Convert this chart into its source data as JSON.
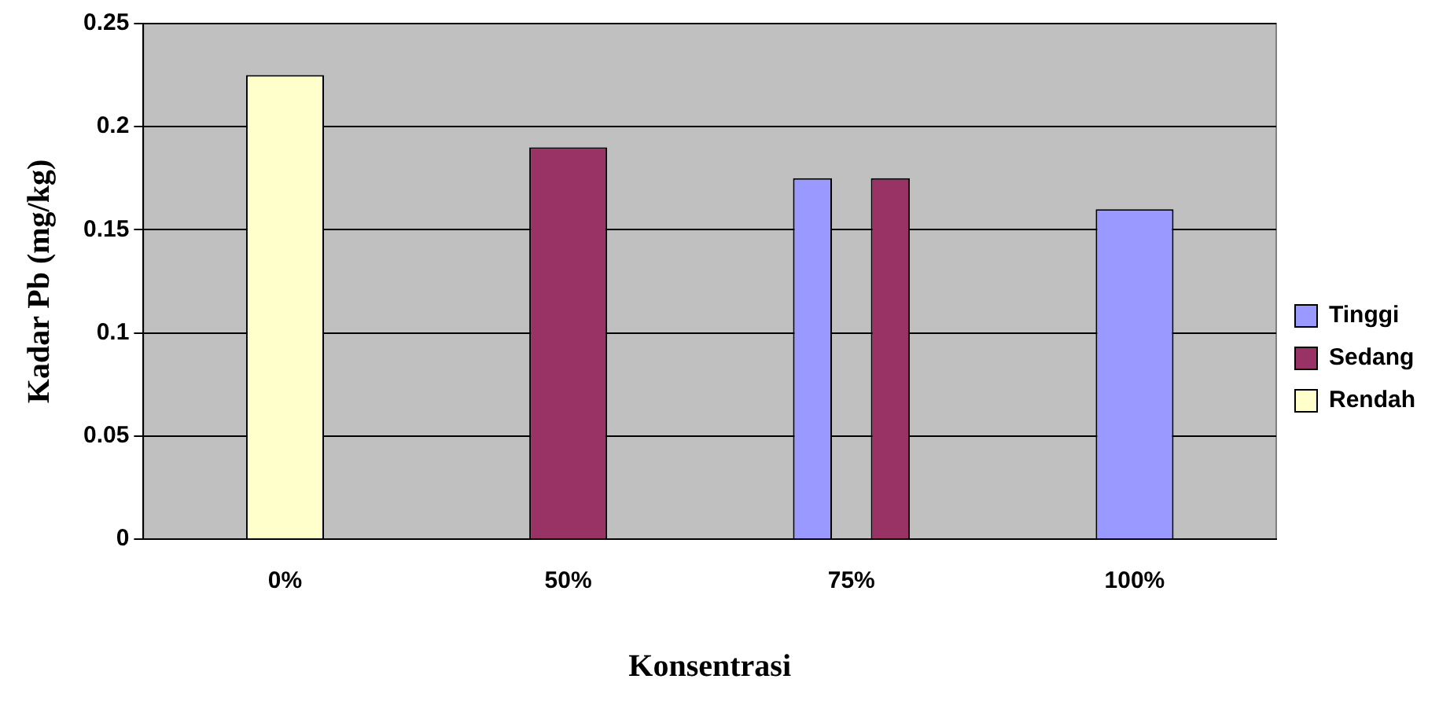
{
  "chart_data": {
    "type": "bar",
    "xlabel": "Konsentrasi",
    "ylabel": "Kadar Pb (mg/kg)",
    "categories": [
      "0%",
      "50%",
      "75%",
      "100%"
    ],
    "series": [
      {
        "name": "Tinggi",
        "color": "#9999ff",
        "values": [
          null,
          null,
          0.175,
          0.16
        ]
      },
      {
        "name": "Sedang",
        "color": "#993366",
        "values": [
          null,
          0.19,
          0.175,
          null
        ]
      },
      {
        "name": "Rendah",
        "color": "#ffffcc",
        "values": [
          0.225,
          null,
          null,
          null
        ]
      }
    ],
    "ylim": [
      0,
      0.25
    ],
    "yticks": [
      0,
      0.05,
      0.1,
      0.15,
      0.2,
      0.25
    ],
    "grid": "y",
    "legend": "right"
  }
}
